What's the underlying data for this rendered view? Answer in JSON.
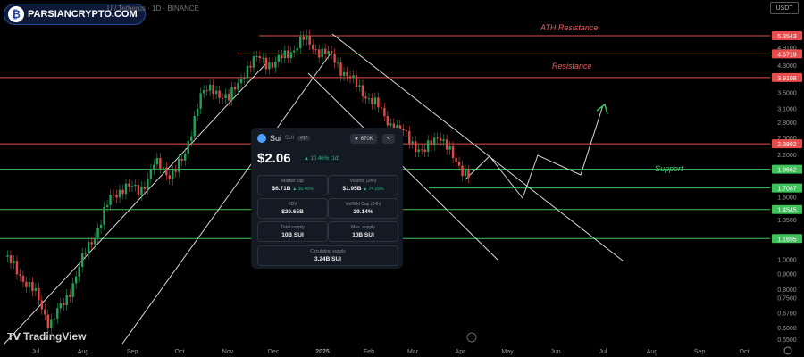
{
  "watermark": {
    "text": "PARSIANCRYPTO.COM"
  },
  "symbol": "U / Tetherus · 1D · BINANCE",
  "currency": "USDT",
  "tradingview": "TradingView",
  "annotations": {
    "ath_resistance": "ATH Resistance",
    "resistance": "Resistance",
    "support": "Support"
  },
  "card": {
    "name": "Sui",
    "ticker": "SUI",
    "rank": "#17",
    "watchlist": "670K",
    "price": "$2.06",
    "change": "▲ 10.46% (1d)",
    "stats": [
      {
        "label": "Market cap",
        "value": "$6.71B",
        "delta": "▲ 10.46%"
      },
      {
        "label": "Volume (24h)",
        "value": "$1.95B",
        "delta": "▲ 74.15%"
      },
      {
        "label": "FDV",
        "value": "$20.65B",
        "delta": ""
      },
      {
        "label": "Vol/Mkt Cap (24h)",
        "value": "29.14%",
        "delta": ""
      },
      {
        "label": "Total supply",
        "value": "10B SUI",
        "delta": ""
      },
      {
        "label": "Max. supply",
        "value": "10B SUI",
        "delta": ""
      }
    ],
    "circulating": {
      "label": "Circulating supply",
      "value": "3.24B SUI"
    }
  },
  "chart_data": {
    "type": "candlestick",
    "title": "",
    "xlabel": "",
    "ylabel": "",
    "scale": "log",
    "x_ticks": [
      "Jul",
      "Aug",
      "Sep",
      "Oct",
      "Nov",
      "Dec",
      "2025",
      "Feb",
      "Mar",
      "Apr",
      "May",
      "Jun",
      "Jul",
      "Aug",
      "Sep",
      "Oct"
    ],
    "y_ticks": [
      "5.3543",
      "4.9100",
      "4.6719",
      "4.3000",
      "3.9108",
      "3.5000",
      "3.1000",
      "2.8000",
      "2.5000",
      "2.3802",
      "2.2000",
      "1.9662",
      "1.7087",
      "1.6000",
      "1.4545",
      "1.3500",
      "1.1695",
      "1.0000",
      "0.9000",
      "0.8000",
      "0.7500",
      "0.6700",
      "0.6000",
      "0.5500"
    ],
    "levels": [
      {
        "name": "ATH Resistance",
        "value": 5.3543,
        "color": "#e84c4c"
      },
      {
        "name": "Resistance",
        "value": 4.6719,
        "color": "#e84c4c"
      },
      {
        "name": "",
        "value": 3.9108,
        "color": "#e84c4c"
      },
      {
        "name": "",
        "value": 2.3802,
        "color": "#e84c4c"
      },
      {
        "name": "Support",
        "value": 1.9662,
        "color": "#3ec25a"
      },
      {
        "name": "",
        "value": 1.7087,
        "color": "#3ec25a"
      },
      {
        "name": "",
        "value": 1.4545,
        "color": "#3ec25a"
      },
      {
        "name": "",
        "value": 1.1695,
        "color": "#3ec25a"
      }
    ],
    "price_path": [
      [
        "Jul",
        1.02
      ],
      [
        "Jul",
        0.9
      ],
      [
        "Aug",
        0.78
      ],
      [
        "Aug",
        0.62
      ],
      [
        "Aug",
        0.72
      ],
      [
        "Sep",
        0.95
      ],
      [
        "Sep",
        1.2
      ],
      [
        "Sep",
        1.55
      ],
      [
        "Oct",
        1.75
      ],
      [
        "Oct",
        1.65
      ],
      [
        "Oct",
        2.05
      ],
      [
        "Oct",
        1.9
      ],
      [
        "Nov",
        2.1
      ],
      [
        "Nov",
        3.4
      ],
      [
        "Nov",
        3.6
      ],
      [
        "Nov",
        3.3
      ],
      [
        "Dec",
        4.1
      ],
      [
        "Dec",
        4.55
      ],
      [
        "Dec",
        4.3
      ],
      [
        "Dec",
        4.75
      ],
      [
        "2025",
        5.2
      ],
      [
        "2025",
        4.8
      ],
      [
        "2025",
        4.5
      ],
      [
        "Feb",
        3.9
      ],
      [
        "Feb",
        3.5
      ],
      [
        "Feb",
        3.1
      ],
      [
        "Mar",
        2.7
      ],
      [
        "Mar",
        2.5
      ],
      [
        "Mar",
        2.2
      ],
      [
        "Apr",
        2.6
      ],
      [
        "Apr",
        2.1
      ],
      [
        "Apr",
        1.9
      ]
    ]
  }
}
